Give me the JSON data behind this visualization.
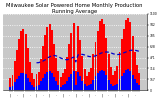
{
  "title": "Milwaukee Solar Powered Home Monthly Production Running Average",
  "bar_values": [
    180,
    220,
    420,
    580,
    740,
    850,
    880,
    810,
    610,
    410,
    250,
    168,
    235,
    267,
    452,
    637,
    796,
    912,
    946,
    865,
    667,
    465,
    280,
    194,
    250,
    301,
    482,
    667,
    818,
    968,
    280,
    925,
    723,
    495,
    310,
    207,
    267,
    323,
    516,
    697,
    852,
    990,
    1024,
    955,
    753,
    525,
    336,
    224,
    280,
    344,
    551,
    731,
    882,
    1011,
    1041,
    981,
    775,
    551,
    366,
    250
  ],
  "avg_values": [
    null,
    null,
    null,
    null,
    null,
    null,
    null,
    null,
    null,
    null,
    null,
    null,
    396,
    398,
    409,
    421,
    438,
    464,
    482,
    496,
    500,
    495,
    483,
    465,
    452,
    443,
    439,
    448,
    461,
    478,
    409,
    508,
    517,
    516,
    508,
    496,
    486,
    482,
    487,
    495,
    508,
    526,
    539,
    547,
    551,
    547,
    539,
    526,
    517,
    513,
    517,
    526,
    539,
    551,
    564,
    573,
    577,
    577,
    568,
    560
  ],
  "small_bar_values": [
    52,
    63,
    121,
    167,
    213,
    245,
    253,
    233,
    176,
    118,
    72,
    48,
    68,
    77,
    130,
    183,
    229,
    262,
    272,
    249,
    192,
    134,
    81,
    56,
    72,
    87,
    139,
    192,
    235,
    278,
    81,
    266,
    208,
    142,
    89,
    60,
    77,
    93,
    148,
    200,
    245,
    285,
    295,
    275,
    217,
    151,
    97,
    64,
    81,
    99,
    158,
    210,
    254,
    291,
    300,
    282,
    223,
    158,
    105,
    72
  ],
  "n_bars": 60,
  "bar_color": "#FF0000",
  "small_bar_color": "#0000FF",
  "avg_line_color": "#0000CC",
  "bg_color": "#FFFFFF",
  "plot_bg": "#C8C8C8",
  "ylim": [
    0,
    1100
  ],
  "title_fontsize": 3.8,
  "grid_color": "#FFFFFF",
  "ytick_count": 8
}
